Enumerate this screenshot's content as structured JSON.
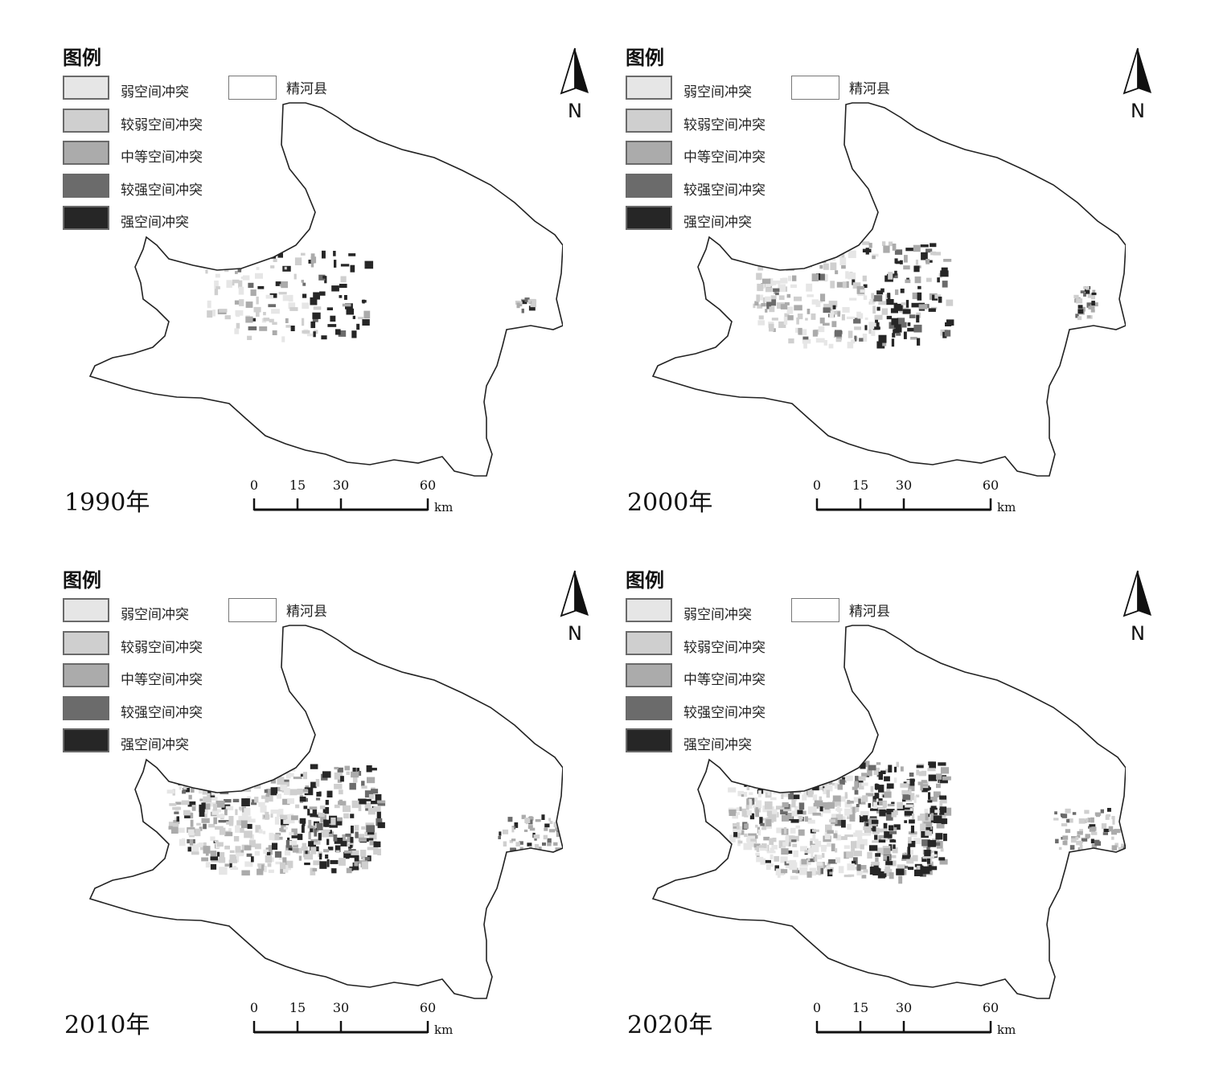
{
  "legend": {
    "title": "图例",
    "classes": [
      {
        "label": "弱空间冲突",
        "color": "#e6e6e6"
      },
      {
        "label": "较弱空间冲突",
        "color": "#cfcfcf"
      },
      {
        "label": "中等空间冲突",
        "color": "#ababab"
      },
      {
        "label": "较强空间冲突",
        "color": "#6b6b6b"
      },
      {
        "label": "强空间冲突",
        "color": "#262626"
      }
    ],
    "boundary_label": "精河县"
  },
  "north_arrow": {
    "label": "N"
  },
  "scale_bar": {
    "ticks": [
      "0",
      "15",
      "30",
      "60"
    ],
    "unit": "km"
  },
  "panels": [
    {
      "year_label": "1990年",
      "extent": "small"
    },
    {
      "year_label": "2000年",
      "extent": "medium"
    },
    {
      "year_label": "2010年",
      "extent": "large"
    },
    {
      "year_label": "2020年",
      "extent": "largest"
    }
  ]
}
